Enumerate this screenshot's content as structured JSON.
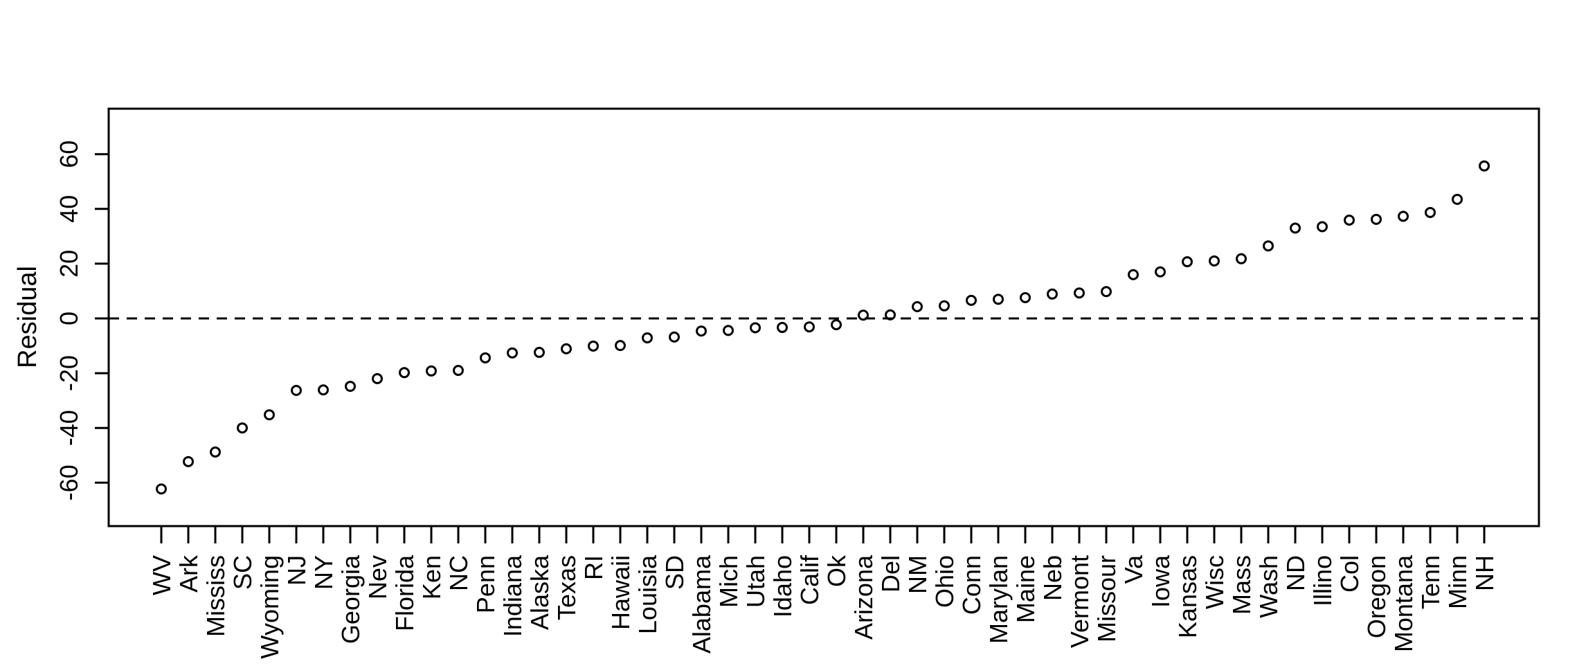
{
  "chart_data": {
    "type": "scatter",
    "title": "",
    "xlabel": "",
    "ylabel": "Residual",
    "marker": "open-circle",
    "point_color": "#000000",
    "background_color": "#ffffff",
    "grid": false,
    "legend": false,
    "reference_line_y": 0,
    "reference_line_style": "dashed",
    "ylim": [
      -76,
      77
    ],
    "yticks": [
      60,
      40,
      20,
      0,
      -20,
      -40,
      -60
    ],
    "categories": [
      "WV",
      "Ark",
      "Mississ",
      "SC",
      "Wyoming",
      "NJ",
      "NY",
      "Georgia",
      "Nev",
      "Florida",
      "Ken",
      "NC",
      "Penn",
      "Indiana",
      "Alaska",
      "Texas",
      "RI",
      "Hawaii",
      "Louisia",
      "SD",
      "Alabama",
      "Mich",
      "Utah",
      "Idaho",
      "Calif",
      "Ok",
      "Arizona",
      "Del",
      "NM",
      "Ohio",
      "Conn",
      "Marylan",
      "Maine",
      "Neb",
      "Vermont",
      "Missour",
      "Va",
      "Iowa",
      "Kansas",
      "Wisc",
      "Mass",
      "Wash",
      "ND",
      "Illino",
      "Col",
      "Oregon",
      "Montana",
      "Tenn",
      "Minn",
      "NH"
    ],
    "values": [
      -62.3,
      -52.3,
      -48.8,
      -40.0,
      -35.2,
      -26.3,
      -26.1,
      -24.8,
      -22.0,
      -19.8,
      -19.2,
      -19.0,
      -14.4,
      -12.6,
      -12.4,
      -11.1,
      -10.1,
      -9.9,
      -7.1,
      -6.8,
      -4.6,
      -4.4,
      -3.4,
      -3.3,
      -3.1,
      -2.3,
      1.2,
      1.3,
      4.3,
      4.6,
      6.6,
      7.0,
      7.6,
      8.9,
      9.3,
      9.8,
      16.0,
      17.0,
      20.7,
      21.0,
      21.8,
      26.5,
      33.0,
      33.5,
      35.9,
      36.2,
      37.3,
      38.7,
      43.5,
      55.7
    ]
  }
}
